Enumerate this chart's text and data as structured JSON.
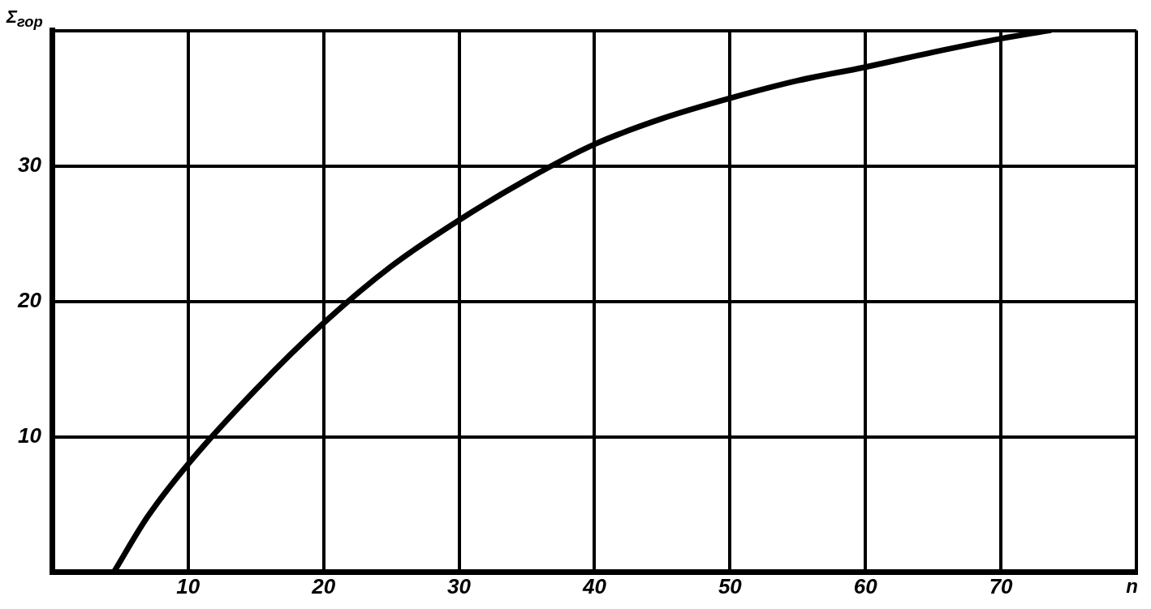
{
  "chart_data": {
    "type": "line",
    "xlabel": "n",
    "ylabel": "Σ$_{гор}$",
    "x": [
      4.5,
      7,
      10,
      15,
      20,
      25,
      30,
      35,
      40,
      45,
      50,
      55,
      60,
      65,
      70,
      73.6
    ],
    "series": [
      {
        "color": "#000000",
        "values": [
          0,
          4.1,
          8,
          13.5,
          18.4,
          22.6,
          26,
          29,
          31.6,
          33.5,
          35,
          36.3,
          37.3,
          38.4,
          39.4,
          40
        ]
      }
    ],
    "xlim": [
      0,
      80
    ],
    "ylim": [
      0,
      40
    ],
    "xticks": [
      {
        "value": 0,
        "label": null
      },
      10,
      20,
      30,
      40,
      50,
      60,
      70,
      {
        "value": 80,
        "label": null
      }
    ],
    "yticks": [
      {
        "value": 0,
        "label": null
      },
      10,
      20,
      30,
      {
        "value": 40,
        "label": null
      }
    ],
    "grid": true,
    "legend": false,
    "marker": "none",
    "line_style": "solid"
  }
}
